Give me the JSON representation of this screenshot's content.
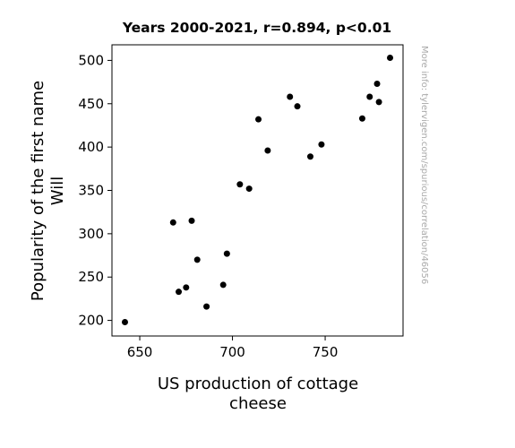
{
  "chart_data": {
    "type": "scatter",
    "title": "Years 2000-2021, r=0.894, p<0.01",
    "xlabel": [
      "US production of cottage",
      "cheese"
    ],
    "ylabel": [
      "Popularity of the first name",
      "Will"
    ],
    "xlim": [
      635,
      792
    ],
    "ylim": [
      182,
      518
    ],
    "xticks": [
      650,
      700,
      750
    ],
    "yticks": [
      200,
      250,
      300,
      350,
      400,
      450,
      500
    ],
    "grid": false,
    "marker_color": "#000000",
    "side_note": "More info: tylervigen.com/spurious/correlation/46056",
    "points": [
      {
        "x": 642,
        "y": 198
      },
      {
        "x": 668,
        "y": 313
      },
      {
        "x": 671,
        "y": 233
      },
      {
        "x": 675,
        "y": 238
      },
      {
        "x": 678,
        "y": 315
      },
      {
        "x": 681,
        "y": 270
      },
      {
        "x": 686,
        "y": 216
      },
      {
        "x": 695,
        "y": 241
      },
      {
        "x": 697,
        "y": 277
      },
      {
        "x": 704,
        "y": 357
      },
      {
        "x": 709,
        "y": 352
      },
      {
        "x": 714,
        "y": 432
      },
      {
        "x": 719,
        "y": 396
      },
      {
        "x": 731,
        "y": 458
      },
      {
        "x": 735,
        "y": 447
      },
      {
        "x": 742,
        "y": 389
      },
      {
        "x": 748,
        "y": 403
      },
      {
        "x": 770,
        "y": 433
      },
      {
        "x": 774,
        "y": 458
      },
      {
        "x": 778,
        "y": 473
      },
      {
        "x": 779,
        "y": 452
      },
      {
        "x": 785,
        "y": 503
      }
    ]
  }
}
